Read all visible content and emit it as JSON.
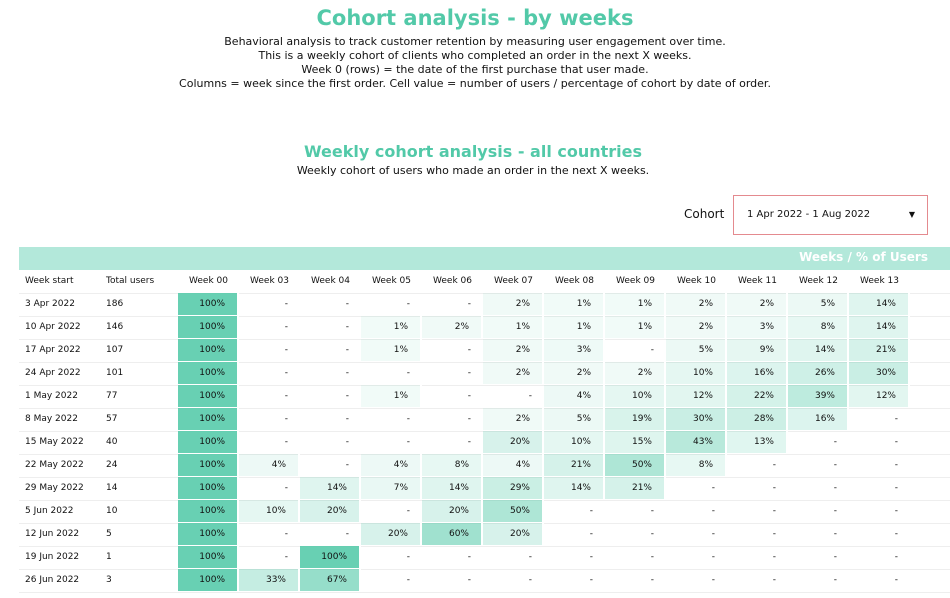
{
  "header": {
    "title": "Cohort analysis - by weeks",
    "lines": [
      "Behavioral analysis to track customer retention by measuring user engagement over time.",
      "This is a weekly cohort of clients who completed an order in the next X weeks.",
      "Week 0 (rows) = the date of the first purchase that user made.",
      "Columns = week since the first order. Cell value = number of users / percentage of cohort by date of order."
    ]
  },
  "section": {
    "title": "Weekly cohort analysis - all countries",
    "subtitle": "Weekly cohort of users who made an order in the next X weeks."
  },
  "filter": {
    "label": "Cohort",
    "value": "1 Apr 2022 - 1 Aug 2022"
  },
  "table": {
    "banner": "Weeks / % of Users",
    "columns": [
      "Week start",
      "Total users",
      "Week 00",
      "Week 03",
      "Week 04",
      "Week 05",
      "Week 06",
      "Week 07",
      "Week 08",
      "Week 09",
      "Week 10",
      "Week 11",
      "Week 12",
      "Week 13"
    ],
    "rows": [
      [
        "3 Apr 2022",
        "186",
        "100%",
        "-",
        "-",
        "-",
        "-",
        "2%",
        "1%",
        "1%",
        "2%",
        "2%",
        "5%",
        "14%"
      ],
      [
        "10 Apr 2022",
        "146",
        "100%",
        "-",
        "-",
        "1%",
        "2%",
        "1%",
        "1%",
        "1%",
        "2%",
        "3%",
        "8%",
        "14%"
      ],
      [
        "17 Apr 2022",
        "107",
        "100%",
        "-",
        "-",
        "1%",
        "-",
        "2%",
        "3%",
        "-",
        "5%",
        "9%",
        "14%",
        "21%"
      ],
      [
        "24 Apr 2022",
        "101",
        "100%",
        "-",
        "-",
        "-",
        "-",
        "2%",
        "2%",
        "2%",
        "10%",
        "16%",
        "26%",
        "30%"
      ],
      [
        "1 May 2022",
        "77",
        "100%",
        "-",
        "-",
        "1%",
        "-",
        "-",
        "4%",
        "10%",
        "12%",
        "22%",
        "39%",
        "12%"
      ],
      [
        "8 May 2022",
        "57",
        "100%",
        "-",
        "-",
        "-",
        "-",
        "2%",
        "5%",
        "19%",
        "30%",
        "28%",
        "16%",
        "-"
      ],
      [
        "15 May 2022",
        "40",
        "100%",
        "-",
        "-",
        "-",
        "-",
        "20%",
        "10%",
        "15%",
        "43%",
        "13%",
        "-",
        "-"
      ],
      [
        "22 May 2022",
        "24",
        "100%",
        "4%",
        "-",
        "4%",
        "8%",
        "4%",
        "21%",
        "50%",
        "8%",
        "-",
        "-",
        "-"
      ],
      [
        "29 May 2022",
        "14",
        "100%",
        "-",
        "14%",
        "7%",
        "14%",
        "29%",
        "14%",
        "21%",
        "-",
        "-",
        "-",
        "-"
      ],
      [
        "5 Jun 2022",
        "10",
        "100%",
        "10%",
        "20%",
        "-",
        "20%",
        "50%",
        "-",
        "-",
        "-",
        "-",
        "-",
        "-"
      ],
      [
        "12 Jun 2022",
        "5",
        "100%",
        "-",
        "-",
        "20%",
        "60%",
        "20%",
        "-",
        "-",
        "-",
        "-",
        "-",
        "-"
      ],
      [
        "19 Jun 2022",
        "1",
        "100%",
        "-",
        "100%",
        "-",
        "-",
        "-",
        "-",
        "-",
        "-",
        "-",
        "-",
        "-"
      ],
      [
        "26 Jun 2022",
        "3",
        "100%",
        "33%",
        "67%",
        "-",
        "-",
        "-",
        "-",
        "-",
        "-",
        "-",
        "-",
        "-"
      ]
    ]
  }
}
